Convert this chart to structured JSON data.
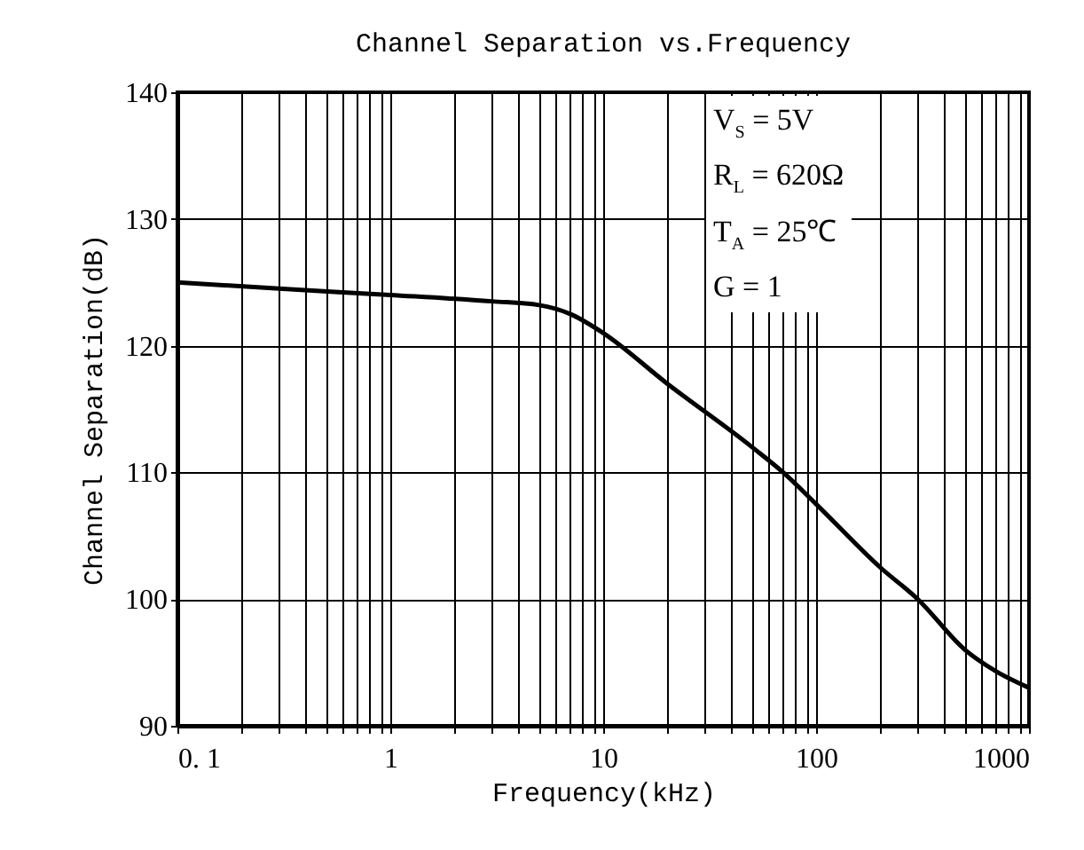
{
  "chart_data": {
    "type": "line",
    "title": "Channel Separation vs.Frequency",
    "xlabel": "Frequency(kHz)",
    "ylabel": "Channel Separation(dB)",
    "x": [
      0.1,
      0.3,
      1,
      3,
      5,
      7,
      10,
      20,
      50,
      70,
      100,
      200,
      300,
      500,
      700,
      1000
    ],
    "series": [
      {
        "color": "#000000",
        "values": [
          125,
          124.5,
          124,
          123.5,
          123.2,
          122.5,
          121,
          117,
          112,
          110,
          107.5,
          102.5,
          100,
          96,
          94.3,
          93
        ]
      }
    ],
    "log": "x",
    "xlim": [
      0.1,
      1000
    ],
    "ylim": [
      90,
      140
    ],
    "xticks": [
      {
        "value": 0.1,
        "label": "0. 1"
      },
      {
        "value": 0.2,
        "label": null
      },
      {
        "value": 0.3,
        "label": null
      },
      {
        "value": 0.4,
        "label": null
      },
      {
        "value": 0.5,
        "label": null
      },
      {
        "value": 0.6,
        "label": null
      },
      {
        "value": 0.7,
        "label": null
      },
      {
        "value": 0.8,
        "label": null
      },
      {
        "value": 0.9,
        "label": null
      },
      1,
      {
        "value": 2,
        "label": null
      },
      {
        "value": 3,
        "label": null
      },
      {
        "value": 4,
        "label": null
      },
      {
        "value": 5,
        "label": null
      },
      {
        "value": 6,
        "label": null
      },
      {
        "value": 7,
        "label": null
      },
      {
        "value": 8,
        "label": null
      },
      {
        "value": 9,
        "label": null
      },
      10,
      {
        "value": 20,
        "label": null
      },
      {
        "value": 30,
        "label": null
      },
      {
        "value": 40,
        "label": null
      },
      {
        "value": 50,
        "label": null
      },
      {
        "value": 60,
        "label": null
      },
      {
        "value": 70,
        "label": null
      },
      {
        "value": 80,
        "label": null
      },
      {
        "value": 90,
        "label": null
      },
      100,
      {
        "value": 200,
        "label": null
      },
      {
        "value": 300,
        "label": null
      },
      {
        "value": 400,
        "label": null
      },
      {
        "value": 500,
        "label": null
      },
      {
        "value": 600,
        "label": null
      },
      {
        "value": 700,
        "label": null
      },
      {
        "value": 800,
        "label": null
      },
      {
        "value": 900,
        "label": null
      },
      1000
    ],
    "yticks": [
      90,
      100,
      110,
      120,
      130,
      140
    ],
    "grid": true,
    "annotations": [
      "V$_{S}$ = 5V",
      "R$_{L}$ = 620Ω",
      "T$_{A}$ = 25℃",
      "G = 1"
    ]
  }
}
